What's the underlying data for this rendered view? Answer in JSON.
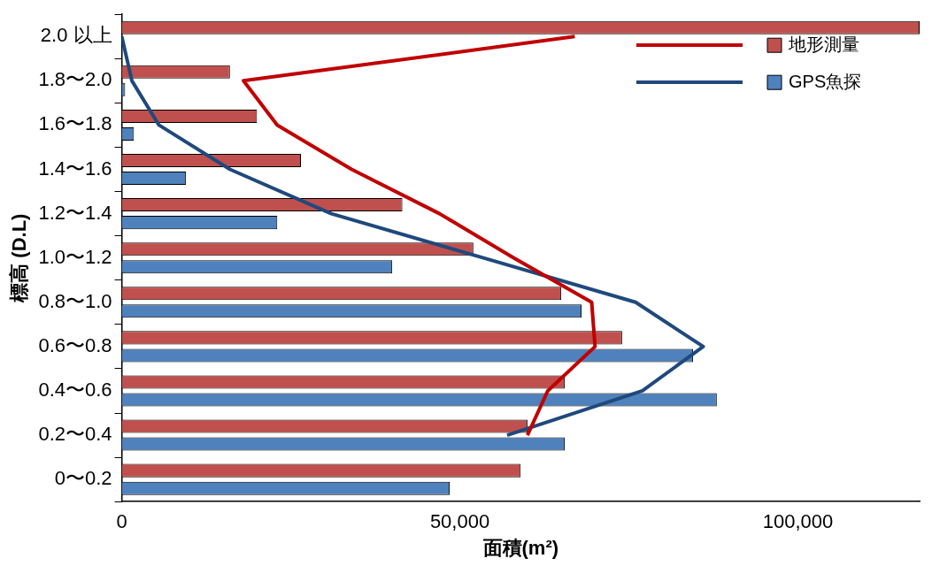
{
  "chart_data": {
    "type": "bar",
    "orientation": "horizontal",
    "categories": [
      "2.0 以上",
      "1.8〜2.0",
      "1.6〜1.8",
      "1.4〜1.6",
      "1.2〜1.4",
      "1.0〜1.2",
      "0.8〜1.0",
      "0.6〜0.8",
      "0.4〜0.6",
      "0.2〜0.4",
      "0〜0.2"
    ],
    "series": [
      {
        "name": "地形測量",
        "color": "#c0504d",
        "values": [
          118000,
          16000,
          20000,
          26500,
          41500,
          52000,
          65000,
          74000,
          65500,
          60000,
          59000
        ]
      },
      {
        "name": "GPS魚探",
        "color": "#4f81bd",
        "values": [
          0,
          500,
          1800,
          9500,
          23000,
          40000,
          68000,
          84500,
          88000,
          65500,
          48500
        ]
      },
      {
        "type": "line",
        "color": "#c00000",
        "values": [
          67000,
          18000,
          23000,
          34000,
          47000,
          58000,
          69500,
          70000,
          63000,
          60000,
          null
        ]
      },
      {
        "type": "line",
        "color": "#1f497d",
        "values": [
          0,
          1500,
          5500,
          16000,
          31000,
          53500,
          76000,
          86000,
          77000,
          57000,
          null
        ]
      }
    ],
    "xlim": [
      0,
      118000
    ],
    "xticks": [
      {
        "value": 0,
        "label": "0"
      },
      {
        "value": 50000,
        "label": "50,000"
      },
      {
        "value": 100000,
        "label": "100,000"
      }
    ],
    "xlabel": "面積(m²)",
    "ylabel": "標高 (D.L)",
    "legend": "top right",
    "grid": false,
    "marker": "none",
    "line_style": "solid"
  }
}
